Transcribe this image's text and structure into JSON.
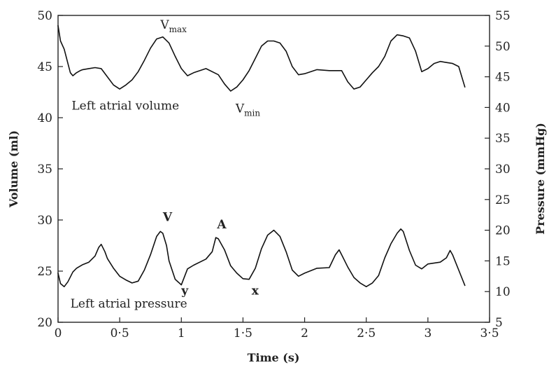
{
  "chart_data": {
    "type": "line",
    "xlabel": "Time (s)",
    "ylabel_left": "Volume (ml)",
    "ylabel_right": "Pressure (mmHg)",
    "xlim": [
      0,
      3.5
    ],
    "ylim_left": [
      20,
      50
    ],
    "ylim_right": [
      5,
      55
    ],
    "x_ticks": [
      {
        "value": 0,
        "label": "0"
      },
      {
        "value": 0.5,
        "label": "0·5"
      },
      {
        "value": 1,
        "label": "1"
      },
      {
        "value": 1.5,
        "label": "1·5"
      },
      {
        "value": 2,
        "label": "2"
      },
      {
        "value": 2.5,
        "label": "2·5"
      },
      {
        "value": 3,
        "label": "3"
      },
      {
        "value": 3.5,
        "label": "3·5"
      }
    ],
    "y_left_ticks": [
      20,
      25,
      30,
      35,
      40,
      45,
      50
    ],
    "y_right_ticks": [
      5,
      10,
      15,
      20,
      25,
      30,
      35,
      40,
      45,
      50,
      55
    ],
    "grid": false,
    "series": [
      {
        "name": "Left atrial volume",
        "axis": "left",
        "x": [
          0,
          0.02,
          0.05,
          0.08,
          0.1,
          0.12,
          0.15,
          0.18,
          0.2,
          0.25,
          0.3,
          0.35,
          0.4,
          0.45,
          0.5,
          0.55,
          0.6,
          0.65,
          0.7,
          0.75,
          0.8,
          0.85,
          0.9,
          0.95,
          1.0,
          1.05,
          1.1,
          1.2,
          1.3,
          1.35,
          1.4,
          1.45,
          1.5,
          1.55,
          1.6,
          1.65,
          1.7,
          1.75,
          1.8,
          1.85,
          1.9,
          1.95,
          2.0,
          2.1,
          2.2,
          2.3,
          2.35,
          2.4,
          2.45,
          2.5,
          2.55,
          2.6,
          2.65,
          2.7,
          2.75,
          2.8,
          2.85,
          2.9,
          2.95,
          3.0,
          3.05,
          3.1,
          3.15,
          3.2,
          3.25,
          3.3
        ],
        "values": [
          49,
          47.5,
          46.7,
          45.3,
          44.4,
          44.1,
          44.4,
          44.6,
          44.7,
          44.8,
          44.9,
          44.8,
          44.0,
          43.2,
          42.8,
          43.2,
          43.7,
          44.5,
          45.6,
          46.8,
          47.7,
          47.9,
          47.3,
          46.0,
          44.8,
          44.1,
          44.4,
          44.8,
          44.2,
          43.3,
          42.6,
          43.0,
          43.7,
          44.6,
          45.8,
          47.0,
          47.5,
          47.5,
          47.3,
          46.5,
          45.0,
          44.2,
          44.3,
          44.7,
          44.6,
          44.6,
          43.5,
          42.8,
          43.0,
          43.7,
          44.4,
          45.0,
          46.0,
          47.5,
          48.1,
          48.0,
          47.8,
          46.5,
          44.5,
          44.8,
          45.3,
          45.5,
          45.4,
          45.3,
          45.0,
          43.0
        ]
      },
      {
        "name": "Left atrial pressure",
        "axis": "right",
        "x": [
          0,
          0.02,
          0.05,
          0.08,
          0.12,
          0.15,
          0.2,
          0.25,
          0.3,
          0.33,
          0.35,
          0.38,
          0.4,
          0.45,
          0.5,
          0.55,
          0.6,
          0.65,
          0.7,
          0.75,
          0.8,
          0.83,
          0.85,
          0.88,
          0.9,
          0.95,
          1.0,
          1.05,
          1.1,
          1.2,
          1.25,
          1.28,
          1.3,
          1.35,
          1.4,
          1.45,
          1.5,
          1.55,
          1.6,
          1.65,
          1.7,
          1.75,
          1.8,
          1.85,
          1.9,
          1.95,
          2.0,
          2.1,
          2.2,
          2.25,
          2.28,
          2.3,
          2.35,
          2.4,
          2.45,
          2.5,
          2.55,
          2.6,
          2.65,
          2.7,
          2.75,
          2.78,
          2.8,
          2.85,
          2.9,
          2.95,
          3.0,
          3.1,
          3.15,
          3.18,
          3.2,
          3.25,
          3.3
        ],
        "values": [
          13,
          11.3,
          10.8,
          11.6,
          13.2,
          13.8,
          14.4,
          14.8,
          15.8,
          17.2,
          17.7,
          16.5,
          15.4,
          13.8,
          12.5,
          11.9,
          11.4,
          11.7,
          13.5,
          16.0,
          19.0,
          19.8,
          19.5,
          17.5,
          15.0,
          12.0,
          11.1,
          13.7,
          14.3,
          15.3,
          16.5,
          18.8,
          18.6,
          16.8,
          14.2,
          13.0,
          12.1,
          12.0,
          13.8,
          17.0,
          19.2,
          20.0,
          19.0,
          16.5,
          13.5,
          12.5,
          13.0,
          13.8,
          13.9,
          16.0,
          16.8,
          16.0,
          14.0,
          12.3,
          11.4,
          10.8,
          11.4,
          12.6,
          15.5,
          17.8,
          19.5,
          20.2,
          19.8,
          16.7,
          14.3,
          13.7,
          14.5,
          14.8,
          15.5,
          16.7,
          16.0,
          13.5,
          11.0
        ]
      }
    ],
    "annotations": [
      {
        "text": "V",
        "sub": "max",
        "x": 0.83,
        "y": 48.7,
        "axis": "left",
        "bold": false
      },
      {
        "text": "V",
        "sub": "min",
        "x": 1.44,
        "y": 40.5,
        "axis": "left",
        "bold": false
      },
      {
        "text": "Left atrial volume",
        "x": 0.11,
        "y": 40.8,
        "axis": "left",
        "bold": false
      },
      {
        "text": "V",
        "x": 0.85,
        "y": 21.5,
        "axis": "right",
        "bold": true
      },
      {
        "text": "A",
        "x": 1.29,
        "y": 20.3,
        "axis": "right",
        "bold": true
      },
      {
        "text": "y",
        "x": 1.0,
        "y": 9.5,
        "axis": "right",
        "bold": true
      },
      {
        "text": "x",
        "x": 1.57,
        "y": 9.5,
        "axis": "right",
        "bold": true
      },
      {
        "text": "Left atrial pressure",
        "x": 0.1,
        "y": 7.4,
        "axis": "right",
        "bold": false
      }
    ]
  }
}
